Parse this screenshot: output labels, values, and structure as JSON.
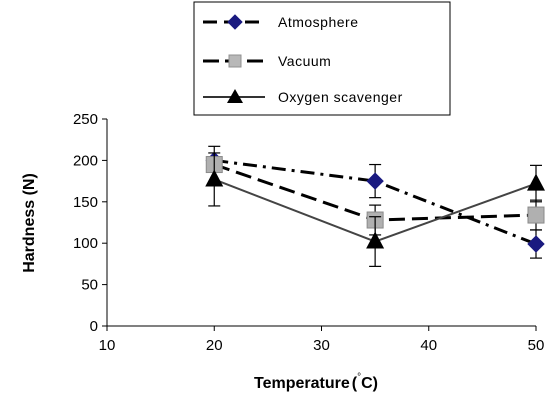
{
  "chart_data": {
    "type": "line",
    "xlabel": "Temperature (°C)",
    "xlabel_main": "Temperature",
    "xlabel_unit_open": "(",
    "xlabel_unit_deg": "°",
    "xlabel_unit_rest": "C)",
    "ylabel": "Hardness (N)",
    "xlim": [
      10,
      50
    ],
    "ylim": [
      0,
      250
    ],
    "xticks": [
      10,
      20,
      30,
      40,
      50
    ],
    "yticks": [
      0,
      50,
      100,
      150,
      200,
      250
    ],
    "grid": false,
    "legend_position": "top-center",
    "series": [
      {
        "name": "Atmosphere",
        "x": [
          20,
          35,
          50
        ],
        "y": [
          200,
          175,
          99
        ],
        "error": [
          null,
          20,
          17
        ],
        "color": "#1a1a80",
        "marker": "diamond",
        "line_style": "dash-dot"
      },
      {
        "name": "Vacuum",
        "x": [
          20,
          35,
          50
        ],
        "y": [
          195,
          128,
          134
        ],
        "error": [
          22,
          18,
          18
        ],
        "color": "#b0b0b0",
        "marker": "square",
        "line_style": "dashed"
      },
      {
        "name": "Oxygen scavenger",
        "x": [
          20,
          35,
          50
        ],
        "y": [
          177,
          102,
          172
        ],
        "error": [
          32,
          30,
          22
        ],
        "color": "#000000",
        "marker": "triangle",
        "line_style": "solid"
      }
    ]
  }
}
